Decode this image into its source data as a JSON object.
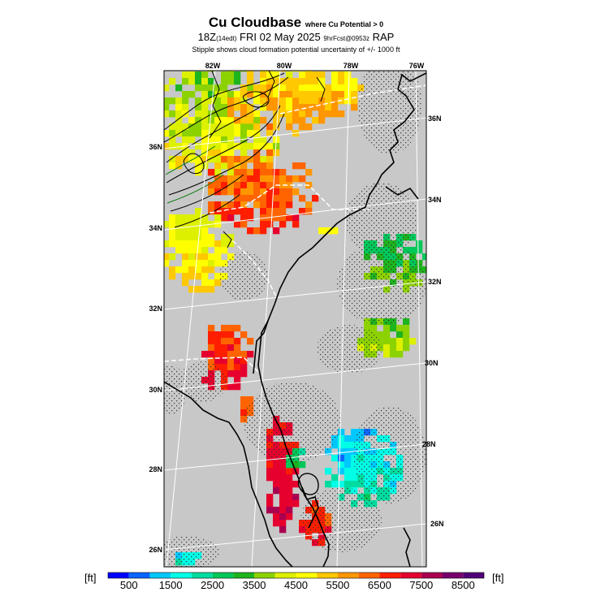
{
  "header": {
    "title": "Cu Cloudbase",
    "title_note": "where Cu Potential > 0",
    "valid_time": "18Z",
    "local_time": "(14edt)",
    "date": "FRI 02 May 2025",
    "run_info": "9hrFcst@0953z",
    "model": "RAP",
    "stipple_note": "Stipple shows cloud formation potential uncertainty of +/-  1000 ft"
  },
  "map": {
    "top_lon_labels": [
      "82W",
      "80W",
      "78W",
      "76W"
    ],
    "left_lat_labels": [
      "36N",
      "34N",
      "32N",
      "30N",
      "28N",
      "26N"
    ],
    "right_lat_labels": [
      "36N",
      "34N",
      "32N",
      "30N",
      "28N",
      "26N"
    ],
    "background_color": "#c8c8c8"
  },
  "colorbar": {
    "unit_left": "[ft]",
    "unit_right": "[ft]",
    "tick_labels": [
      "500",
      "1500",
      "2500",
      "3500",
      "4500",
      "5500",
      "6500",
      "7500",
      "8500"
    ],
    "colors": [
      "#0000ff",
      "#0a64ff",
      "#00c8ff",
      "#00ffe6",
      "#00dca0",
      "#00c85a",
      "#1eb41e",
      "#8cd200",
      "#dcf000",
      "#ffff00",
      "#ffc800",
      "#ff9600",
      "#ff6400",
      "#ff1e00",
      "#e6002d",
      "#aa0050",
      "#78006e",
      "#500078"
    ]
  }
}
